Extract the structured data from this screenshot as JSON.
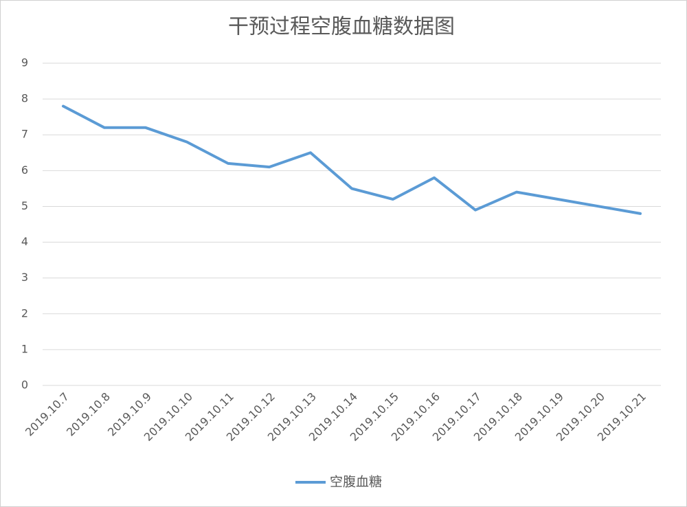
{
  "chart_data": {
    "type": "line",
    "title": "干预过程空腹血糖数据图",
    "categories": [
      "2019.10.7",
      "2019.10.8",
      "2019.10.9",
      "2019.10.10",
      "2019.10.11",
      "2019.10.12",
      "2019.10.13",
      "2019.10.14",
      "2019.10.15",
      "2019.10.16",
      "2019.10.17",
      "2019.10.18",
      "2019.10.19",
      "2019.10.20",
      "2019.10.21"
    ],
    "series": [
      {
        "name": "空腹血糖",
        "color": "#5b9bd5",
        "values": [
          7.8,
          7.2,
          7.2,
          6.8,
          6.2,
          6.1,
          6.5,
          5.5,
          5.2,
          5.8,
          4.9,
          5.4,
          5.2,
          5.0,
          4.8
        ]
      }
    ],
    "ylim": [
      0,
      9
    ],
    "yticks": [
      0,
      1,
      2,
      3,
      4,
      5,
      6,
      7,
      8,
      9
    ],
    "grid": true,
    "legend": "bottom"
  }
}
